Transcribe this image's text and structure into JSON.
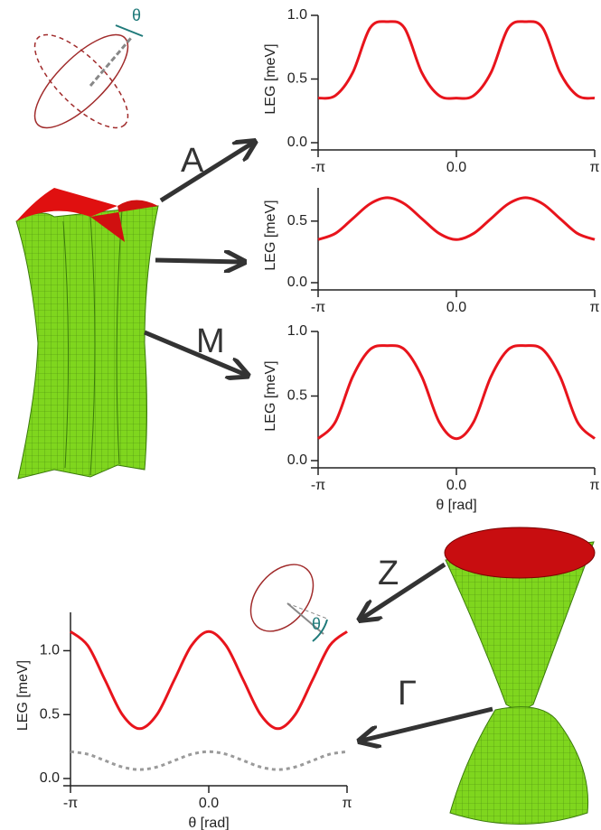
{
  "chart_data": [
    {
      "type": "line",
      "y_label": "LEG [meV]",
      "x": [
        -3.1416,
        -2.7489,
        -2.3562,
        -1.9635,
        -1.5708,
        -1.1781,
        -0.7854,
        -0.3927,
        0,
        0.3927,
        0.7854,
        1.1781,
        1.5708,
        1.9635,
        2.3562,
        2.7489,
        3.1416
      ],
      "xlim": [
        -3.1416,
        3.1416
      ],
      "xticks": [
        {
          "value": -3.1416,
          "label": "-π"
        },
        {
          "value": 0,
          "label": "0.0"
        },
        {
          "value": 3.1416,
          "label": "π"
        }
      ],
      "ylim": [
        0,
        1.0
      ],
      "yticks": [
        {
          "value": 0,
          "label": "0.0"
        },
        0.5,
        {
          "value": 1.0,
          "label": "1.0"
        }
      ],
      "series": [
        {
          "color": "#e8141c",
          "values": [
            0.35,
            0.37,
            0.55,
            0.9,
            0.95,
            0.9,
            0.55,
            0.37,
            0.35,
            0.37,
            0.55,
            0.9,
            0.95,
            0.9,
            0.55,
            0.37,
            0.35
          ]
        }
      ]
    },
    {
      "type": "line",
      "y_label": "LEG [meV]",
      "x": [
        -3.1416,
        -2.7489,
        -2.3562,
        -1.9635,
        -1.5708,
        -1.1781,
        -0.7854,
        -0.3927,
        0,
        0.3927,
        0.7854,
        1.1781,
        1.5708,
        1.9635,
        2.3562,
        2.7489,
        3.1416
      ],
      "xlim": [
        -3.1416,
        3.1416
      ],
      "xticks": [
        {
          "value": -3.1416,
          "label": "-π"
        },
        {
          "value": 0,
          "label": "0.0"
        },
        {
          "value": 3.1416,
          "label": "π"
        }
      ],
      "ylim": [
        0,
        0.77
      ],
      "yticks": [
        {
          "value": 0,
          "label": "0.0"
        },
        0.5
      ],
      "series": [
        {
          "color": "#e8141c",
          "values": [
            0.35,
            0.4,
            0.52,
            0.64,
            0.69,
            0.64,
            0.52,
            0.4,
            0.35,
            0.4,
            0.52,
            0.64,
            0.69,
            0.64,
            0.52,
            0.4,
            0.35
          ]
        }
      ]
    },
    {
      "type": "line",
      "y_label": "LEG [meV]",
      "x_label": "θ [rad]",
      "x": [
        -3.1416,
        -2.7489,
        -2.3562,
        -1.9635,
        -1.5708,
        -1.1781,
        -0.7854,
        -0.3927,
        0,
        0.3927,
        0.7854,
        1.1781,
        1.5708,
        1.9635,
        2.3562,
        2.7489,
        3.1416
      ],
      "xlim": [
        -3.1416,
        3.1416
      ],
      "xticks": [
        {
          "value": -3.1416,
          "label": "-π"
        },
        {
          "value": 0,
          "label": "0.0"
        },
        {
          "value": 3.1416,
          "label": "π"
        }
      ],
      "ylim": [
        0,
        1.0
      ],
      "yticks": [
        {
          "value": 0,
          "label": "0.0"
        },
        0.5,
        {
          "value": 1.0,
          "label": "1.0"
        }
      ],
      "series": [
        {
          "color": "#e8141c",
          "values": [
            0.17,
            0.3,
            0.65,
            0.86,
            0.89,
            0.86,
            0.65,
            0.3,
            0.17,
            0.3,
            0.65,
            0.86,
            0.89,
            0.86,
            0.65,
            0.3,
            0.17
          ]
        }
      ]
    },
    {
      "type": "line",
      "y_label": "LEG [meV]",
      "x_label": "θ [rad]",
      "x": [
        -3.1416,
        -2.7489,
        -2.3562,
        -1.9635,
        -1.5708,
        -1.1781,
        -0.7854,
        -0.3927,
        0,
        0.3927,
        0.7854,
        1.1781,
        1.5708,
        1.9635,
        2.3562,
        2.7489,
        3.1416
      ],
      "xlim": [
        -3.1416,
        3.1416
      ],
      "xticks": [
        {
          "value": -3.1416,
          "label": "-π"
        },
        {
          "value": 0,
          "label": "0.0"
        },
        {
          "value": 3.1416,
          "label": "π"
        }
      ],
      "ylim": [
        0,
        1.3
      ],
      "yticks": [
        {
          "value": 0,
          "label": "0.0"
        },
        0.5,
        {
          "value": 1.0,
          "label": "1.0"
        }
      ],
      "series": [
        {
          "color": "#e8141c",
          "values": [
            1.15,
            1.04,
            0.77,
            0.5,
            0.39,
            0.5,
            0.77,
            1.04,
            1.15,
            1.04,
            0.77,
            0.5,
            0.39,
            0.5,
            0.77,
            1.04,
            1.15
          ]
        },
        {
          "color": "#9a9a9a",
          "style": "dotted",
          "values": [
            0.21,
            0.19,
            0.14,
            0.09,
            0.07,
            0.09,
            0.14,
            0.19,
            0.21,
            0.19,
            0.14,
            0.09,
            0.07,
            0.09,
            0.14,
            0.19,
            0.21
          ]
        }
      ]
    }
  ],
  "annotations": {
    "A": "A",
    "M": "M",
    "Z": "Z",
    "Gamma": "Γ",
    "theta_top": "θ",
    "theta_bottom": "θ"
  }
}
